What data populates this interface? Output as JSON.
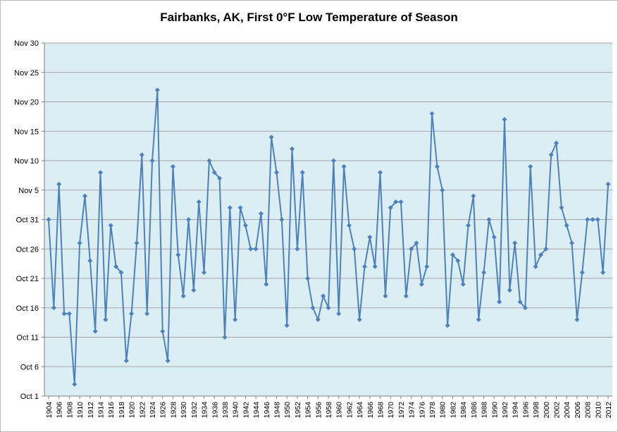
{
  "chart_data": {
    "type": "line",
    "title": "Fairbanks, AK, First 0°F Low Temperature of Season",
    "xlabel": "",
    "ylabel": "",
    "legend": "none",
    "grid": true,
    "marker": "diamond",
    "line_color": "#4f81bd",
    "plot_bg": "#daeef3",
    "grid_color": "#a6a6a6",
    "axis_color": "#808080",
    "ylim": [
      "Oct 1",
      "Nov 30"
    ],
    "y_ticks": [
      "Oct 1",
      "Oct 6",
      "Oct 11",
      "Oct 16",
      "Oct 21",
      "Oct 26",
      "Oct 31",
      "Nov 5",
      "Nov 10",
      "Nov 15",
      "Nov 20",
      "Nov 25",
      "Nov 30"
    ],
    "x_tick_step": 2,
    "x": [
      1904,
      1905,
      1906,
      1907,
      1908,
      1909,
      1910,
      1911,
      1912,
      1913,
      1914,
      1915,
      1916,
      1917,
      1918,
      1919,
      1920,
      1921,
      1922,
      1923,
      1924,
      1925,
      1926,
      1927,
      1928,
      1929,
      1930,
      1931,
      1932,
      1933,
      1934,
      1935,
      1936,
      1937,
      1938,
      1939,
      1940,
      1941,
      1942,
      1943,
      1944,
      1945,
      1946,
      1947,
      1948,
      1949,
      1950,
      1951,
      1952,
      1953,
      1954,
      1955,
      1956,
      1957,
      1958,
      1959,
      1960,
      1961,
      1962,
      1963,
      1964,
      1965,
      1966,
      1967,
      1968,
      1969,
      1970,
      1971,
      1972,
      1973,
      1974,
      1975,
      1976,
      1977,
      1978,
      1979,
      1980,
      1981,
      1982,
      1983,
      1984,
      1985,
      1986,
      1987,
      1988,
      1989,
      1990,
      1991,
      1992,
      1993,
      1994,
      1995,
      1996,
      1997,
      1998,
      1999,
      2000,
      2001,
      2002,
      2003,
      2004,
      2005,
      2006,
      2007,
      2008,
      2009,
      2010,
      2011,
      2012
    ],
    "values": [
      "Oct 31",
      "Oct 16",
      "Nov 6",
      "Oct 15",
      "Oct 15",
      "Oct 3",
      "Oct 27",
      "Nov 4",
      "Oct 24",
      "Oct 12",
      "Nov 8",
      "Oct 14",
      "Oct 30",
      "Oct 23",
      "Oct 22",
      "Oct 7",
      "Oct 15",
      "Oct 27",
      "Nov 11",
      "Oct 15",
      "Nov 10",
      "Nov 22",
      "Oct 12",
      "Oct 7",
      "Nov 9",
      "Oct 25",
      "Oct 18",
      "Oct 31",
      "Oct 19",
      "Nov 3",
      "Oct 22",
      "Nov 10",
      "Nov 8",
      "Nov 7",
      "Oct 11",
      "Nov 2",
      "Oct 14",
      "Nov 2",
      "Oct 30",
      "Oct 26",
      "Oct 26",
      "Nov 1",
      "Oct 20",
      "Nov 14",
      "Nov 8",
      "Oct 31",
      "Oct 13",
      "Nov 12",
      "Oct 26",
      "Nov 8",
      "Oct 21",
      "Oct 16",
      "Oct 14",
      "Oct 18",
      "Oct 16",
      "Nov 10",
      "Oct 15",
      "Nov 9",
      "Oct 30",
      "Oct 26",
      "Oct 14",
      "Oct 23",
      "Oct 28",
      "Oct 23",
      "Nov 8",
      "Oct 18",
      "Nov 2",
      "Nov 3",
      "Nov 3",
      "Oct 18",
      "Oct 26",
      "Oct 27",
      "Oct 20",
      "Oct 23",
      "Nov 18",
      "Nov 9",
      "Nov 5",
      "Oct 13",
      "Oct 25",
      "Oct 24",
      "Oct 20",
      "Oct 30",
      "Nov 4",
      "Oct 14",
      "Oct 22",
      "Oct 31",
      "Oct 28",
      "Oct 17",
      "Nov 17",
      "Oct 19",
      "Oct 27",
      "Oct 17",
      "Oct 16",
      "Nov 9",
      "Oct 23",
      "Oct 25",
      "Oct 26",
      "Nov 11",
      "Nov 13",
      "Nov 2",
      "Oct 30",
      "Oct 27",
      "Oct 14",
      "Oct 22",
      "Oct 31",
      "Oct 31",
      "Oct 31",
      "Oct 22",
      "Nov 6"
    ]
  }
}
